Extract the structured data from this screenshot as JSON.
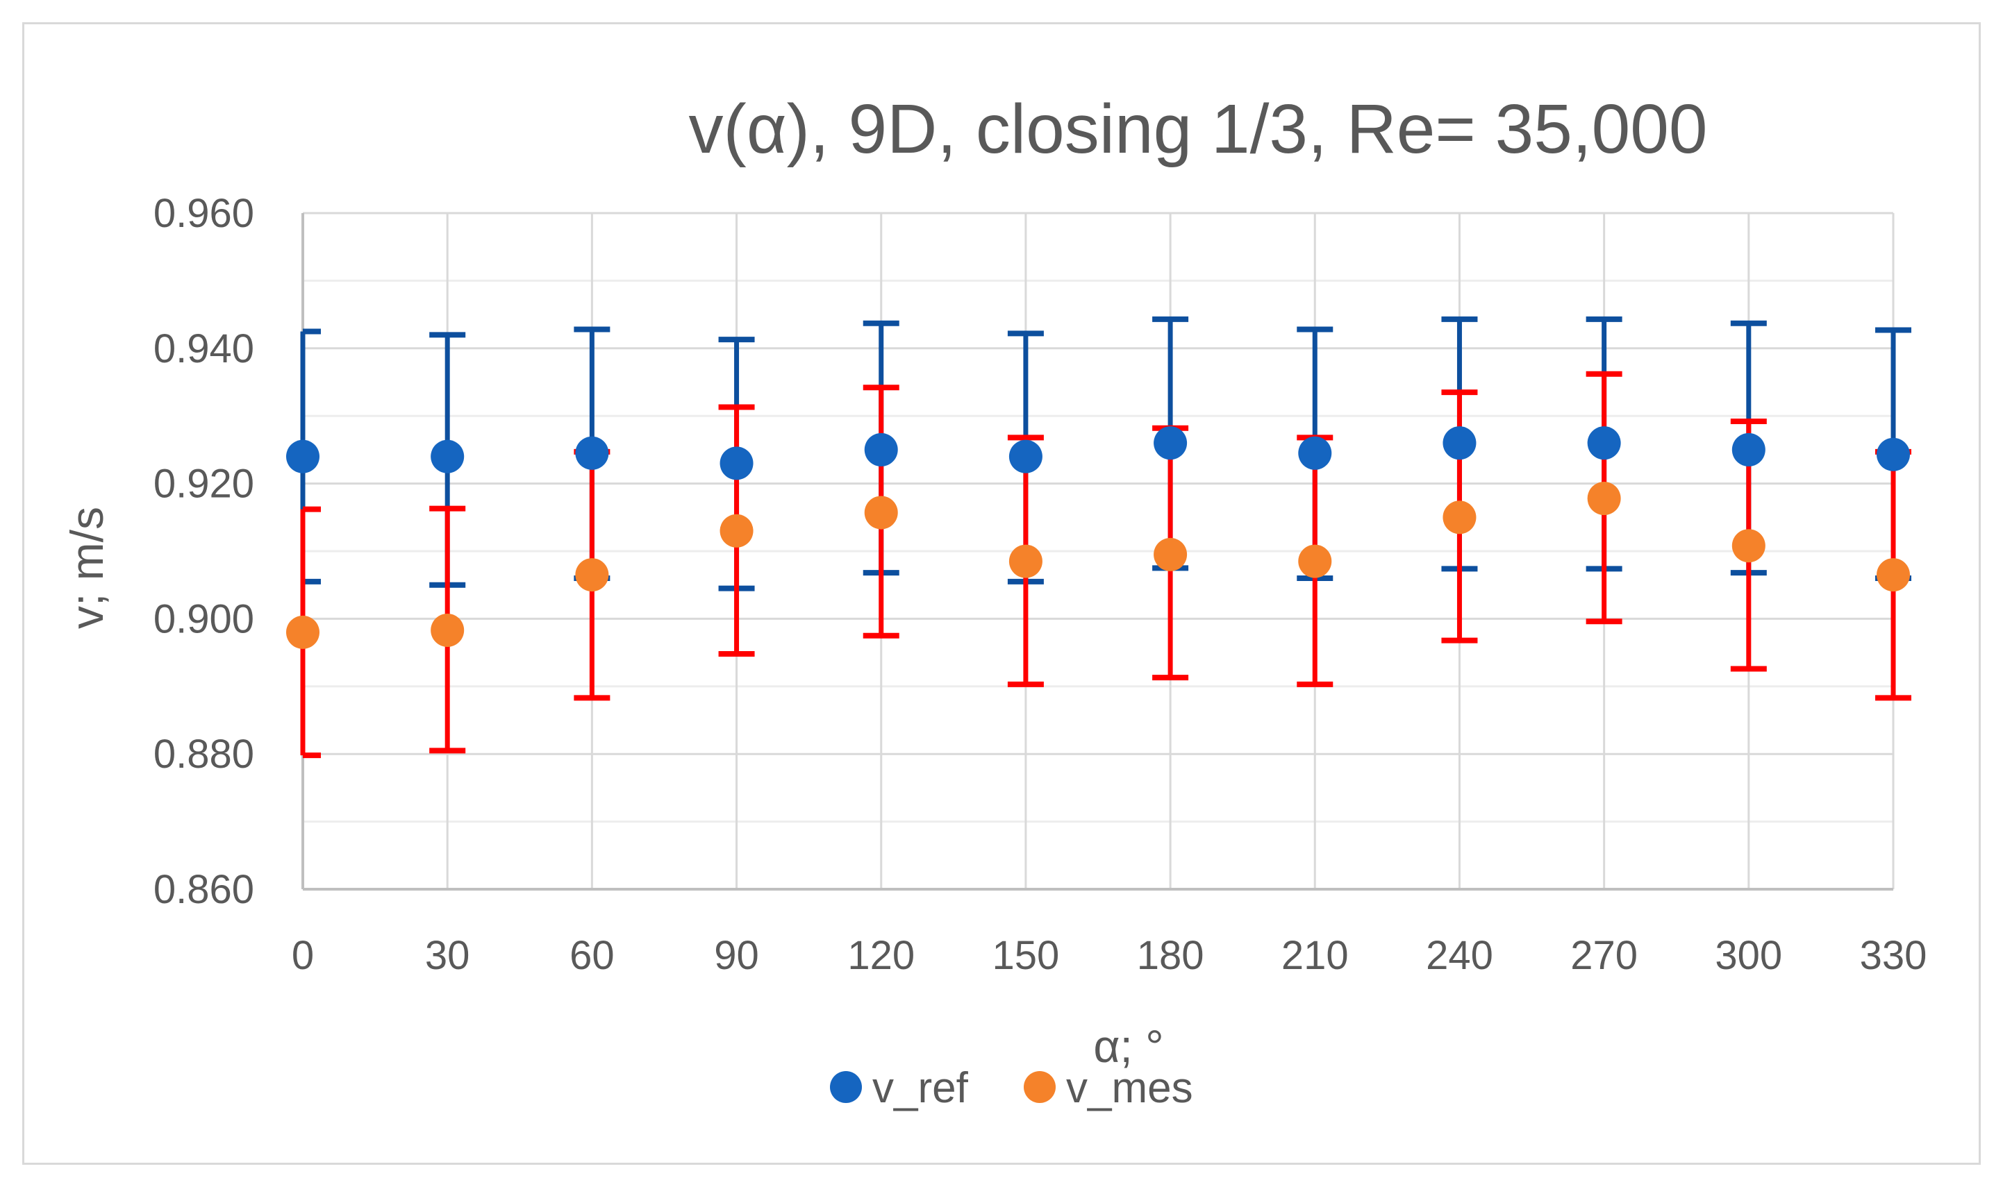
{
  "chart_data": {
    "type": "scatter",
    "title": "v(α), 9D, closing 1/3, Re= 35,000",
    "xlabel": "α; °",
    "ylabel": "v; m/s",
    "categories": [
      "0",
      "30",
      "60",
      "90",
      "120",
      "150",
      "180",
      "210",
      "240",
      "270",
      "300",
      "330"
    ],
    "ylim": [
      0.86,
      0.96
    ],
    "yticks": [
      "0.860",
      "0.880",
      "0.900",
      "0.920",
      "0.940",
      "0.960"
    ],
    "ytick_values": [
      0.86,
      0.88,
      0.9,
      0.92,
      0.94,
      0.96
    ],
    "grid": true,
    "legend_position": "bottom-center",
    "series": [
      {
        "name": "v_ref",
        "color": "#1565c0",
        "error_color": "#0d4f9e",
        "values": [
          0.924,
          0.924,
          0.9245,
          0.923,
          0.925,
          0.924,
          0.926,
          0.9245,
          0.926,
          0.926,
          0.925,
          0.9243
        ],
        "error_low": [
          0.9055,
          0.905,
          0.906,
          0.9045,
          0.9068,
          0.9055,
          0.9075,
          0.906,
          0.9074,
          0.9074,
          0.9068,
          0.906
        ],
        "error_high": [
          0.9425,
          0.942,
          0.9428,
          0.9413,
          0.9437,
          0.9422,
          0.9443,
          0.9428,
          0.9443,
          0.9443,
          0.9437,
          0.9427
        ]
      },
      {
        "name": "v_mes",
        "color": "#f5822a",
        "error_color": "#ff0000",
        "values": [
          0.898,
          0.8983,
          0.9065,
          0.913,
          0.9157,
          0.9085,
          0.9095,
          0.9085,
          0.915,
          0.9178,
          0.9108,
          0.9065
        ],
        "error_low": [
          0.8798,
          0.8805,
          0.8883,
          0.8948,
          0.8975,
          0.8903,
          0.8913,
          0.8903,
          0.8968,
          0.8996,
          0.8926,
          0.8883
        ],
        "error_high": [
          0.9162,
          0.9163,
          0.9247,
          0.9313,
          0.9342,
          0.9268,
          0.9282,
          0.9268,
          0.9335,
          0.9362,
          0.9292,
          0.9247
        ]
      }
    ]
  }
}
